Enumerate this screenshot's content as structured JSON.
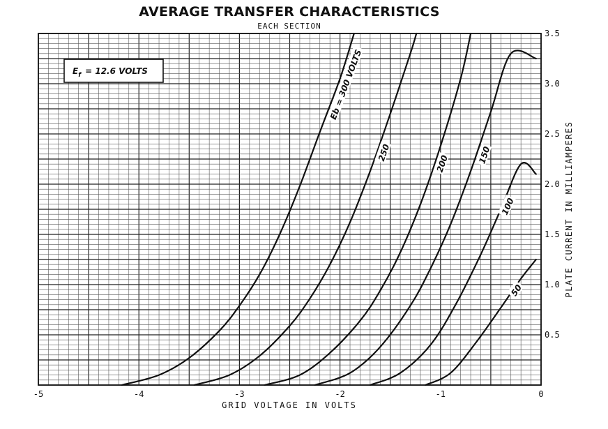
{
  "chart_data": {
    "type": "line",
    "title": "AVERAGE TRANSFER CHARACTERISTICS",
    "subtitle": "EACH SECTION",
    "xlabel": "GRID VOLTAGE IN VOLTS",
    "ylabel": "PLATE CURRENT IN MILLIAMPERES",
    "xlim": [
      -5,
      0
    ],
    "ylim": [
      0,
      3.5
    ],
    "x_ticks": [
      "-5",
      "-4",
      "-3",
      "-2",
      "-1",
      "0"
    ],
    "y_ticks": [
      "0.5",
      "1.0",
      "1.5",
      "2.0",
      "2.5",
      "3.0",
      "3.5"
    ],
    "grid": true,
    "note": {
      "prefix": "E",
      "subscript": "f",
      "text": "= 12.6 VOLTS"
    },
    "series": [
      {
        "name": "Eb = 300 VOLTS",
        "label_text": "Eb = 300 VOLTS",
        "points": [
          [
            -4.17,
            0.0
          ],
          [
            -3.8,
            0.1
          ],
          [
            -3.5,
            0.27
          ],
          [
            -3.2,
            0.54
          ],
          [
            -3.0,
            0.79
          ],
          [
            -2.8,
            1.1
          ],
          [
            -2.6,
            1.5
          ],
          [
            -2.4,
            1.98
          ],
          [
            -2.2,
            2.52
          ],
          [
            -2.0,
            3.05
          ],
          [
            -1.86,
            3.5
          ]
        ]
      },
      {
        "name": "250",
        "label_text": "250",
        "points": [
          [
            -3.45,
            0.0
          ],
          [
            -3.1,
            0.1
          ],
          [
            -2.8,
            0.29
          ],
          [
            -2.5,
            0.59
          ],
          [
            -2.3,
            0.86
          ],
          [
            -2.1,
            1.2
          ],
          [
            -1.9,
            1.62
          ],
          [
            -1.7,
            2.13
          ],
          [
            -1.5,
            2.7
          ],
          [
            -1.3,
            3.3
          ],
          [
            -1.24,
            3.5
          ]
        ]
      },
      {
        "name": "200",
        "label_text": "200",
        "points": [
          [
            -2.75,
            0.0
          ],
          [
            -2.4,
            0.1
          ],
          [
            -2.1,
            0.32
          ],
          [
            -1.8,
            0.64
          ],
          [
            -1.6,
            0.94
          ],
          [
            -1.4,
            1.32
          ],
          [
            -1.2,
            1.8
          ],
          [
            -1.0,
            2.38
          ],
          [
            -0.8,
            3.05
          ],
          [
            -0.7,
            3.5
          ]
        ]
      },
      {
        "name": "150",
        "label_text": "150",
        "points": [
          [
            -2.25,
            0.0
          ],
          [
            -1.9,
            0.12
          ],
          [
            -1.6,
            0.38
          ],
          [
            -1.3,
            0.79
          ],
          [
            -1.1,
            1.16
          ],
          [
            -0.9,
            1.6
          ],
          [
            -0.7,
            2.13
          ],
          [
            -0.5,
            2.72
          ],
          [
            -0.3,
            3.3
          ],
          [
            -0.05,
            3.25
          ]
        ]
      },
      {
        "name": "100",
        "label_text": "100",
        "points": [
          [
            -1.7,
            0.0
          ],
          [
            -1.4,
            0.12
          ],
          [
            -1.1,
            0.4
          ],
          [
            -0.85,
            0.8
          ],
          [
            -0.6,
            1.3
          ],
          [
            -0.4,
            1.75
          ],
          [
            -0.2,
            2.2
          ],
          [
            -0.05,
            2.1
          ]
        ]
      },
      {
        "name": "50",
        "label_text": "50",
        "points": [
          [
            -1.15,
            0.0
          ],
          [
            -0.9,
            0.12
          ],
          [
            -0.65,
            0.42
          ],
          [
            -0.4,
            0.77
          ],
          [
            -0.2,
            1.06
          ],
          [
            -0.05,
            1.25
          ]
        ]
      }
    ]
  }
}
